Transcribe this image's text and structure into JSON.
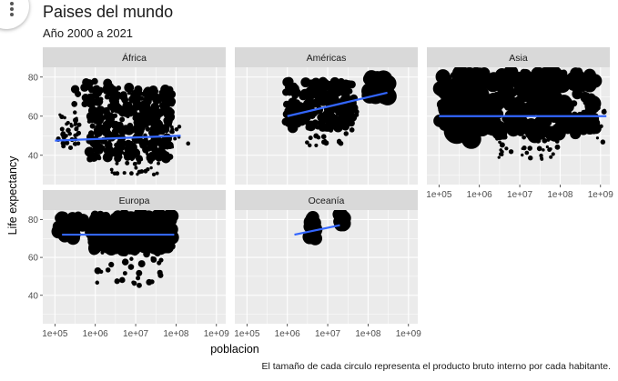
{
  "header": {
    "title": "Paises del mundo",
    "subtitle": "Año 2000 a 2021"
  },
  "caption": "El tamaño de cada circulo representa el producto bruto interno por cada habitante.",
  "colors": {
    "panel_bg": "#ebebeb",
    "strip_bg": "#d9d9d9",
    "grid_major": "#ffffff",
    "points": "#000000",
    "trend_line": "#3366ff"
  },
  "chart_data": {
    "type": "scatter",
    "facet_by": "continent",
    "x": {
      "label": "poblacion",
      "scale": "log10",
      "range": [
        50000,
        1700000000
      ],
      "ticks": [
        100000,
        1000000,
        10000000,
        100000000,
        1000000000
      ],
      "tick_labels": [
        "1e+05",
        "1e+06",
        "1e+07",
        "1e+08",
        "1e+09"
      ]
    },
    "y": {
      "label": "Life expectancy",
      "range": [
        25,
        85
      ],
      "ticks": [
        40,
        60,
        80
      ],
      "tick_labels": [
        "40",
        "60",
        "80"
      ]
    },
    "size_encoding": "gdp_per_capita",
    "grid": true,
    "legend": "none",
    "panels": [
      {
        "name": "África",
        "trend": {
          "x": [
            100000,
            130000000
          ],
          "y": [
            47.5,
            50
          ]
        },
        "clusters": [
          {
            "x": [
              120000,
              400000
            ],
            "y": [
              42,
              62
            ],
            "size": [
              1.5,
              3
            ],
            "n": 40
          },
          {
            "x": [
              700000,
              80000000
            ],
            "y": [
              38,
              75
            ],
            "size": [
              2,
              5.5
            ],
            "n": 340
          },
          {
            "x": [
              2000000,
              40000000
            ],
            "y": [
              30,
              52
            ],
            "size": [
              1.5,
              2.5
            ],
            "n": 60
          },
          {
            "x": [
              10000000,
              200000000
            ],
            "y": [
              44,
              56
            ],
            "size": [
              1.5,
              2.5
            ],
            "n": 30
          },
          {
            "x": [
              300000,
              3000000
            ],
            "y": [
              66,
              78
            ],
            "size": [
              3,
              5
            ],
            "n": 25
          }
        ]
      },
      {
        "name": "Américas",
        "trend": {
          "x": [
            1000000,
            300000000
          ],
          "y": [
            60,
            72
          ]
        },
        "clusters": [
          {
            "x": [
              900000,
              45000000
            ],
            "y": [
              54,
              78
            ],
            "size": [
              3,
              6
            ],
            "n": 200
          },
          {
            "x": [
              3000000,
              60000000
            ],
            "y": [
              45,
              64
            ],
            "size": [
              2,
              3
            ],
            "n": 40
          },
          {
            "x": [
              100000000,
              330000000
            ],
            "y": [
              70,
              80
            ],
            "size": [
              6,
              11
            ],
            "n": 30
          }
        ]
      },
      {
        "name": "Asia",
        "trend": {
          "x": [
            100000,
            1400000000
          ],
          "y": [
            60,
            60
          ]
        },
        "clusters": [
          {
            "x": [
              100000,
              800000000
            ],
            "y": [
              50,
              83
            ],
            "size": [
              3,
              9
            ],
            "n": 320
          },
          {
            "x": [
              200000,
              1000000
            ],
            "y": [
              46,
              74
            ],
            "size": [
              8,
              16
            ],
            "n": 12
          },
          {
            "x": [
              2000000,
              100000000
            ],
            "y": [
              38,
              58
            ],
            "size": [
              1.5,
              3
            ],
            "n": 60
          },
          {
            "x": [
              250000000,
              1400000000
            ],
            "y": [
              45,
              74
            ],
            "size": [
              1.5,
              3
            ],
            "n": 25
          }
        ]
      },
      {
        "name": "Europa",
        "trend": {
          "x": [
            150000,
            90000000
          ],
          "y": [
            72,
            72
          ]
        },
        "clusters": [
          {
            "x": [
              110000,
              500000
            ],
            "y": [
              70,
              82
            ],
            "size": [
              4,
              8
            ],
            "n": 30
          },
          {
            "x": [
              800000,
              80000000
            ],
            "y": [
              64,
              83
            ],
            "size": [
              4,
              8
            ],
            "n": 260
          },
          {
            "x": [
              1000000,
              50000000
            ],
            "y": [
              45,
              68
            ],
            "size": [
              2,
              4
            ],
            "n": 40
          }
        ]
      },
      {
        "name": "Oceanía",
        "trend": {
          "x": [
            1500000,
            20000000
          ],
          "y": [
            72,
            77
          ]
        },
        "clusters": [
          {
            "x": [
              3500000,
              5000000
            ],
            "y": [
              70,
              82
            ],
            "size": [
              6,
              8
            ],
            "n": 20
          },
          {
            "x": [
              19000000,
              26000000
            ],
            "y": [
              77,
              83
            ],
            "size": [
              6,
              8
            ],
            "n": 20
          }
        ]
      }
    ]
  }
}
